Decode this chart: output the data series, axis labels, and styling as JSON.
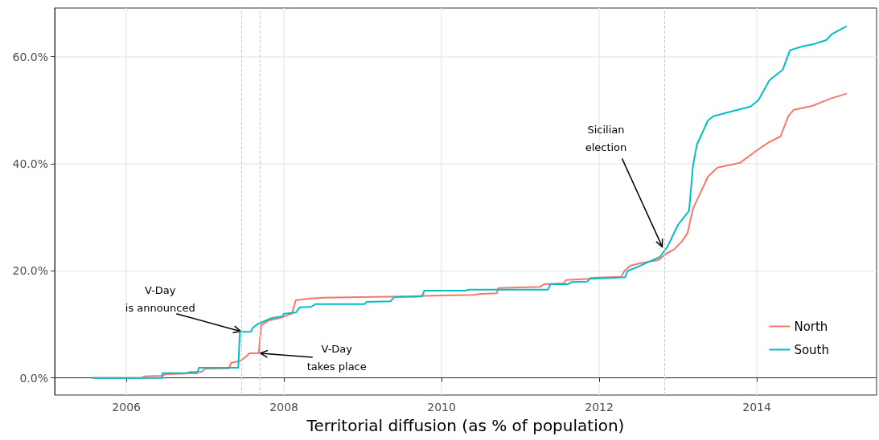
{
  "chart_data": {
    "type": "line",
    "xlabel": "Territorial diffusion (as % of population)",
    "xlim": [
      2005.09,
      2015.52
    ],
    "xticks": [
      2006,
      2008,
      2010,
      2012,
      2014
    ],
    "ylim": [
      -3.2,
      69.1
    ],
    "yticks": [
      {
        "value": 0,
        "label": "0.0%"
      },
      {
        "value": 20,
        "label": "20.0%"
      },
      {
        "value": 40,
        "label": "40.0%"
      },
      {
        "value": 60,
        "label": "60.0%"
      }
    ],
    "grid": true,
    "legend": "bottom right",
    "line_style": "solid",
    "marker": "none",
    "series": [
      {
        "name": "North",
        "color": "#f8766d",
        "x": [
          2005.57,
          2006.2,
          2006.23,
          2006.45,
          2006.5,
          2006.75,
          2006.8,
          2006.95,
          2007.0,
          2007.3,
          2007.33,
          2007.45,
          2007.52,
          2007.56,
          2007.68,
          2007.71,
          2007.8,
          2007.95,
          2008.1,
          2008.15,
          2008.3,
          2008.5,
          2009.5,
          2010.0,
          2010.4,
          2010.5,
          2010.7,
          2010.72,
          2011.25,
          2011.3,
          2011.55,
          2011.58,
          2011.87,
          2011.9,
          2012.28,
          2012.32,
          2012.4,
          2012.55,
          2012.75,
          2012.85,
          2012.95,
          2013.05,
          2013.12,
          2013.19,
          2013.25,
          2013.38,
          2013.5,
          2013.79,
          2013.99,
          2014.15,
          2014.3,
          2014.4,
          2014.47,
          2014.7,
          2014.94,
          2015.14
        ],
        "values": [
          0,
          0,
          0.3,
          0.4,
          0.7,
          0.8,
          1.1,
          1.1,
          1.7,
          1.8,
          2.8,
          3.2,
          4.0,
          4.6,
          4.6,
          9.8,
          10.7,
          11.2,
          12.0,
          14.5,
          14.8,
          15.0,
          15.2,
          15.4,
          15.5,
          15.7,
          15.8,
          16.8,
          17.0,
          17.5,
          17.7,
          18.3,
          18.5,
          18.7,
          18.9,
          20.0,
          21.0,
          21.5,
          22.0,
          23.2,
          24.0,
          25.5,
          27.0,
          31.6,
          33.5,
          37.6,
          39.3,
          40.2,
          42.4,
          44.0,
          45.1,
          48.9,
          50.1,
          50.8,
          52.2,
          53.1
        ]
      },
      {
        "name": "South",
        "color": "#00bfc4",
        "x": [
          2005.57,
          2006.45,
          2006.46,
          2006.9,
          2006.92,
          2007.42,
          2007.44,
          2007.58,
          2007.6,
          2007.66,
          2007.75,
          2007.85,
          2007.98,
          2008.0,
          2008.15,
          2008.2,
          2008.35,
          2008.4,
          2009.02,
          2009.05,
          2009.35,
          2009.4,
          2009.75,
          2009.78,
          2010.3,
          2010.35,
          2011.35,
          2011.38,
          2011.6,
          2011.65,
          2011.85,
          2011.88,
          2012.33,
          2012.36,
          2012.5,
          2012.6,
          2012.77,
          2012.87,
          2013.0,
          2013.14,
          2013.19,
          2013.24,
          2013.38,
          2013.45,
          2013.71,
          2013.92,
          2014.02,
          2014.16,
          2014.33,
          2014.42,
          2014.57,
          2014.73,
          2014.88,
          2014.95,
          2015.14
        ],
        "values": [
          0,
          0,
          0.9,
          0.9,
          1.9,
          1.9,
          8.6,
          8.6,
          9.3,
          10.0,
          10.6,
          11.2,
          11.5,
          12.0,
          12.2,
          13.2,
          13.3,
          13.8,
          13.8,
          14.2,
          14.3,
          15.1,
          15.2,
          16.3,
          16.3,
          16.5,
          16.5,
          17.5,
          17.5,
          17.9,
          18.0,
          18.5,
          18.8,
          20.0,
          20.8,
          21.5,
          22.6,
          24.6,
          28.6,
          31.2,
          39.6,
          43.6,
          48.1,
          48.9,
          49.9,
          50.7,
          51.9,
          55.6,
          57.6,
          61.2,
          61.9,
          62.4,
          63.1,
          64.2,
          65.7
        ]
      }
    ],
    "ref_lines": [
      {
        "axis": "x",
        "value": 2007.46,
        "color": "#cccccc",
        "line_style": "dashed"
      },
      {
        "axis": "x",
        "value": 2007.69,
        "color": "#cccccc",
        "line_style": "dashed"
      },
      {
        "axis": "x",
        "value": 2012.83,
        "color": "#cccccc",
        "line_style": "dashed"
      }
    ],
    "annotations": [
      {
        "text": "V-Day\nis announced",
        "x": 2007.45,
        "y": 8.7
      },
      {
        "text": "V-Day\ntakes place",
        "x": 2007.7,
        "y": 4.6
      },
      {
        "text": "Sicilian\nelection",
        "x": 2012.8,
        "y": 24.5
      }
    ]
  }
}
